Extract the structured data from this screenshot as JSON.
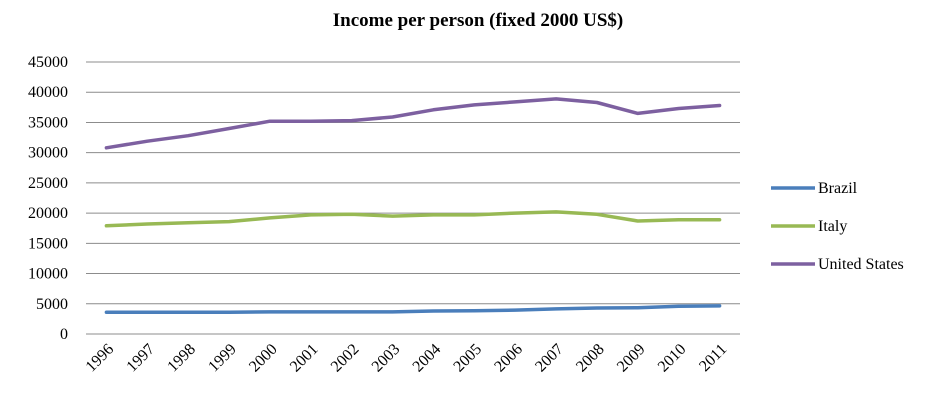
{
  "chart_data": {
    "type": "line",
    "title": "Income per person (fixed 2000 US$)",
    "xlabel": "",
    "ylabel": "",
    "ylim": [
      0,
      45000
    ],
    "y_ticks": [
      "45000",
      "40000",
      "35000",
      "30000",
      "25000",
      "20000",
      "15000",
      "10000",
      "5000",
      "0"
    ],
    "categories": [
      "1996",
      "1997",
      "1998",
      "1999",
      "2000",
      "2001",
      "2002",
      "2003",
      "2004",
      "2005",
      "2006",
      "2007",
      "2008",
      "2009",
      "2010",
      "2011"
    ],
    "grid": true,
    "legend_position": "right",
    "series": [
      {
        "name": "Brazil",
        "color": "#4a7ebb",
        "values": [
          3600,
          3600,
          3600,
          3600,
          3650,
          3650,
          3650,
          3650,
          3800,
          3850,
          3950,
          4150,
          4300,
          4350,
          4600,
          4650
        ]
      },
      {
        "name": "Italy",
        "color": "#98b954",
        "values": [
          17900,
          18200,
          18400,
          18600,
          19200,
          19700,
          19800,
          19500,
          19700,
          19700,
          20000,
          20200,
          19800,
          18700,
          18900,
          18900
        ]
      },
      {
        "name": "United States",
        "color": "#7d60a0",
        "values": [
          30800,
          31900,
          32800,
          34000,
          35200,
          35200,
          35300,
          35900,
          37100,
          37900,
          38400,
          38900,
          38300,
          36500,
          37300,
          37800
        ]
      }
    ]
  }
}
